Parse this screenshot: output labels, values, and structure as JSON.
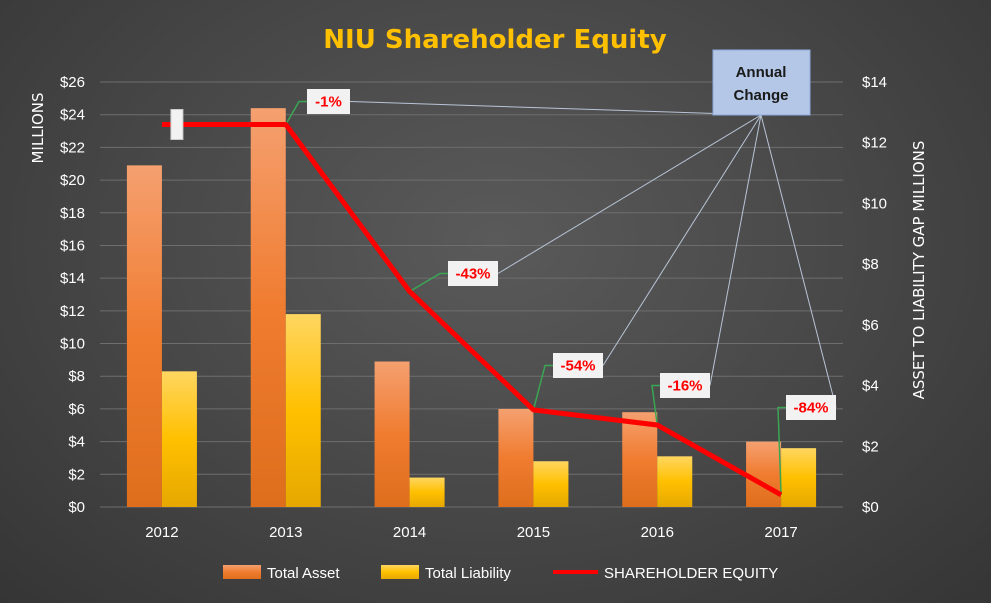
{
  "chart_data": {
    "type": "bar",
    "title": "NIU Shareholder Equity",
    "categories": [
      "2012",
      "2013",
      "2014",
      "2015",
      "2016",
      "2017"
    ],
    "series": [
      {
        "name": "Total Asset",
        "type": "bar",
        "axis": "left",
        "color": "#f07c30",
        "values": [
          20.9,
          24.4,
          8.9,
          6.0,
          5.8,
          4.0
        ]
      },
      {
        "name": "Total Liability",
        "type": "bar",
        "axis": "left",
        "color": "#ffc000",
        "values": [
          8.3,
          11.8,
          1.8,
          2.8,
          3.1,
          3.6
        ]
      },
      {
        "name": "SHAREHOLDER EQUITY",
        "type": "line",
        "axis": "right",
        "color": "#ff0000",
        "values": [
          12.6,
          12.6,
          7.1,
          3.2,
          2.7,
          0.4
        ]
      }
    ],
    "left_axis": {
      "label": "MILLIONS",
      "min": 0,
      "max": 26,
      "step": 2,
      "tick_labels": [
        "$0",
        "$2",
        "$4",
        "$6",
        "$8",
        "$10",
        "$12",
        "$14",
        "$16",
        "$18",
        "$20",
        "$22",
        "$24",
        "$26"
      ]
    },
    "right_axis": {
      "label": "ASSET TO LIABILITY GAP   MILLIONS",
      "min": 0,
      "max": 14,
      "step": 2,
      "tick_labels": [
        "$0",
        "$2",
        "$4",
        "$6",
        "$8",
        "$10",
        "$12",
        "$14"
      ]
    },
    "annotations": {
      "box_label_line1": "Annual",
      "box_label_line2": "Change",
      "changes": [
        "-1%",
        "-43%",
        "-54%",
        "-16%",
        "-84%"
      ]
    },
    "grid": true,
    "legend_position": "bottom"
  }
}
